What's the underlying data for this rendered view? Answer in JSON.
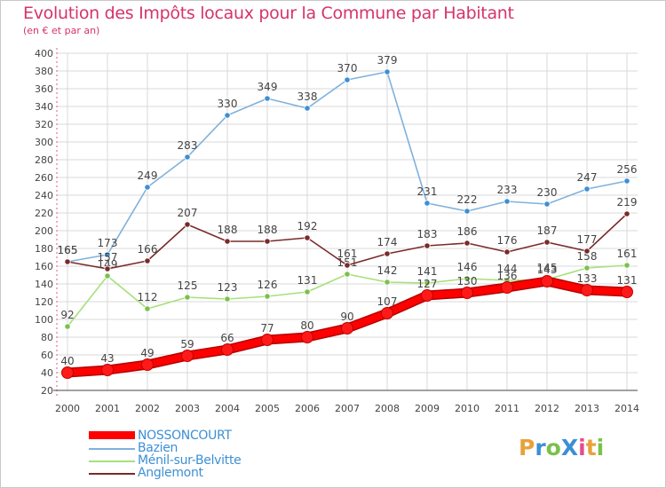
{
  "title": "Evolution des Impôts locaux pour la Commune par Habitant",
  "subtitle": "(en € et par an)",
  "logo": {
    "text": "ProXiti",
    "letters": [
      "P",
      "r",
      "o",
      "X",
      "i",
      "t",
      "i"
    ],
    "colors": [
      "#e8a23a",
      "#3d8fd4",
      "#7cc04b",
      "#3d8fd4",
      "#e84a8a",
      "#e8a23a",
      "#7cc04b"
    ]
  },
  "colors": {
    "axis": "#e05a8a",
    "grid": "#d9d9d9",
    "label": "#444444",
    "legend_text": "#3d8fd4"
  },
  "chart_data": {
    "type": "line",
    "title": "Evolution des Impôts locaux pour la Commune par Habitant",
    "ylabel": "(en € et par an)",
    "xlabel": "",
    "categories": [
      "2000",
      "2001",
      "2002",
      "2003",
      "2004",
      "2005",
      "2006",
      "2007",
      "2008",
      "2009",
      "2010",
      "2011",
      "2012",
      "2013",
      "2014"
    ],
    "yticks": [
      20,
      40,
      60,
      80,
      100,
      120,
      140,
      160,
      180,
      200,
      220,
      240,
      260,
      280,
      300,
      320,
      340,
      360,
      380,
      400
    ],
    "ylim": [
      20,
      400
    ],
    "grid": true,
    "series": [
      {
        "name": "NOSSONCOURT",
        "color": "#ff0000",
        "dot": "#e60000",
        "emphasis": true,
        "values": [
          40,
          43,
          49,
          59,
          66,
          77,
          80,
          90,
          107,
          127,
          130,
          136,
          143,
          133,
          131
        ]
      },
      {
        "name": "Bazien",
        "color": "#7fb1dc",
        "dot": "#3d8fd4",
        "emphasis": false,
        "values": [
          165,
          173,
          249,
          283,
          330,
          349,
          338,
          370,
          379,
          231,
          222,
          233,
          230,
          247,
          256
        ]
      },
      {
        "name": "Ménil-sur-Belvitte",
        "color": "#a6e07a",
        "dot": "#7cc04b",
        "emphasis": false,
        "values": [
          92,
          149,
          112,
          125,
          123,
          126,
          131,
          151,
          142,
          141,
          146,
          144,
          145,
          158,
          161
        ]
      },
      {
        "name": "Anglemont",
        "color": "#7a2a2a",
        "dot": "#7a2a2a",
        "emphasis": false,
        "values": [
          165,
          157,
          166,
          207,
          188,
          188,
          192,
          161,
          174,
          183,
          186,
          176,
          187,
          177,
          219
        ]
      }
    ]
  }
}
